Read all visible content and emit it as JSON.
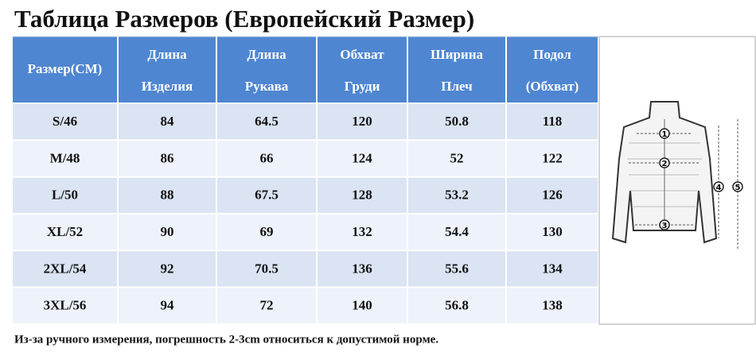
{
  "header": {
    "title": "Таблица Размеров (Европейский Размер)"
  },
  "table": {
    "columns": [
      [
        "Размер(СМ)"
      ],
      [
        "Длина",
        "Изделия"
      ],
      [
        "Длина",
        "Рукава"
      ],
      [
        "Обхват",
        "Груди"
      ],
      [
        "Ширина",
        "Плеч"
      ],
      [
        "Подол",
        "(Обхват)"
      ]
    ],
    "rows": [
      [
        "S/46",
        84,
        64.5,
        120,
        50.8,
        118
      ],
      [
        "M/48",
        86,
        66,
        124,
        52,
        122
      ],
      [
        "L/50",
        88,
        67.5,
        128,
        53.2,
        126
      ],
      [
        "XL/52",
        90,
        69,
        132,
        54.4,
        130
      ],
      [
        "2XL/54",
        92,
        70.5,
        136,
        55.6,
        134
      ],
      [
        "3XL/56",
        94,
        72,
        140,
        56.8,
        138
      ]
    ]
  },
  "diagram": {
    "markers": [
      "1",
      "2",
      "3",
      "4",
      "5"
    ]
  },
  "footer": {
    "note": "Из-за ручного измерения, погрешность 2-3cm относиться к допустимой норме."
  }
}
